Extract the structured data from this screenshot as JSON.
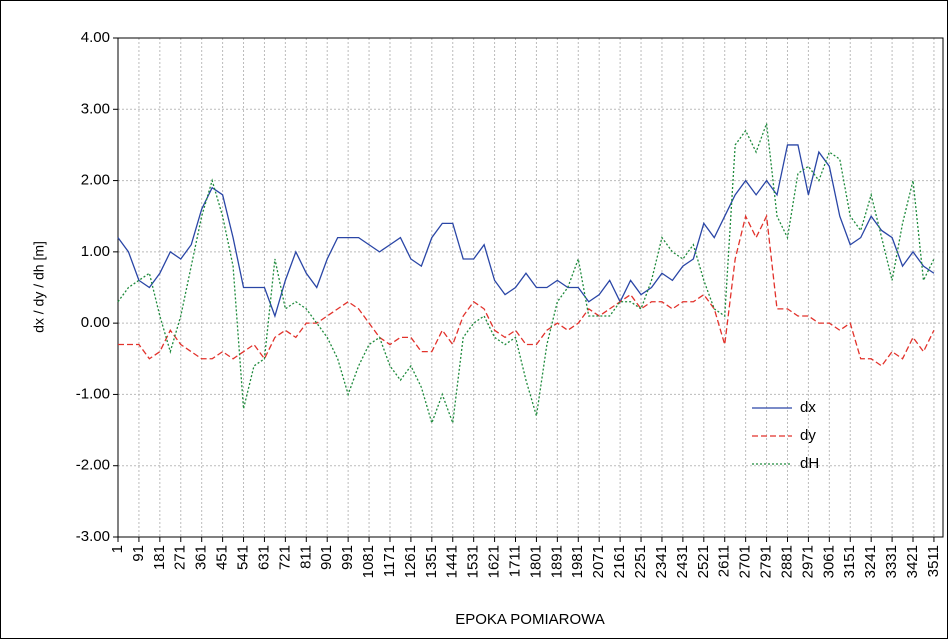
{
  "chart_data": {
    "type": "line",
    "x_label": "EPOKA POMIAROWA",
    "y_label": "dx / dy / dh [m]",
    "x": [
      1,
      46,
      91,
      136,
      181,
      226,
      271,
      316,
      361,
      406,
      451,
      496,
      541,
      586,
      631,
      676,
      721,
      766,
      811,
      856,
      901,
      946,
      991,
      1036,
      1081,
      1126,
      1171,
      1216,
      1261,
      1306,
      1351,
      1396,
      1441,
      1486,
      1531,
      1576,
      1621,
      1666,
      1711,
      1756,
      1801,
      1846,
      1891,
      1936,
      1981,
      2026,
      2071,
      2116,
      2161,
      2206,
      2251,
      2296,
      2341,
      2386,
      2431,
      2476,
      2521,
      2566,
      2611,
      2656,
      2701,
      2746,
      2791,
      2836,
      2881,
      2926,
      2971,
      3016,
      3061,
      3106,
      3151,
      3196,
      3241,
      3286,
      3331,
      3376,
      3421,
      3466,
      3511
    ],
    "series": [
      {
        "name": "dx",
        "color": "#2a46a6",
        "dash": "none",
        "values": [
          1.2,
          1.0,
          0.6,
          0.5,
          0.7,
          1.0,
          0.9,
          1.1,
          1.6,
          1.9,
          1.8,
          1.2,
          0.5,
          0.5,
          0.5,
          0.1,
          0.6,
          1.0,
          0.7,
          0.5,
          0.9,
          1.2,
          1.2,
          1.2,
          1.1,
          1.0,
          1.1,
          1.2,
          0.9,
          0.8,
          1.2,
          1.4,
          1.4,
          0.9,
          0.9,
          1.1,
          0.6,
          0.4,
          0.5,
          0.7,
          0.5,
          0.5,
          0.6,
          0.5,
          0.5,
          0.3,
          0.4,
          0.6,
          0.3,
          0.6,
          0.4,
          0.5,
          0.7,
          0.6,
          0.8,
          0.9,
          1.4,
          1.2,
          1.5,
          1.8,
          2.0,
          1.8,
          2.0,
          1.8,
          2.5,
          2.5,
          1.8,
          2.4,
          2.2,
          1.5,
          1.1,
          1.2,
          1.5,
          1.3,
          1.2,
          0.8,
          1.0,
          0.8,
          0.7
        ]
      },
      {
        "name": "dy",
        "color": "#e2322b",
        "dash": "6,3",
        "values": [
          -0.3,
          -0.3,
          -0.3,
          -0.5,
          -0.4,
          -0.1,
          -0.3,
          -0.4,
          -0.5,
          -0.5,
          -0.4,
          -0.5,
          -0.4,
          -0.3,
          -0.5,
          -0.2,
          -0.1,
          -0.2,
          0.0,
          0.0,
          0.1,
          0.2,
          0.3,
          0.2,
          0.0,
          -0.2,
          -0.3,
          -0.2,
          -0.2,
          -0.4,
          -0.4,
          -0.1,
          -0.3,
          0.1,
          0.3,
          0.2,
          -0.1,
          -0.2,
          -0.1,
          -0.3,
          -0.3,
          -0.1,
          0.0,
          -0.1,
          0.0,
          0.2,
          0.1,
          0.2,
          0.3,
          0.4,
          0.2,
          0.3,
          0.3,
          0.2,
          0.3,
          0.3,
          0.4,
          0.2,
          -0.3,
          0.9,
          1.5,
          1.2,
          1.5,
          0.2,
          0.2,
          0.1,
          0.1,
          0.0,
          0.0,
          -0.1,
          0.0,
          -0.5,
          -0.5,
          -0.6,
          -0.4,
          -0.5,
          -0.2,
          -0.4,
          -0.1
        ]
      },
      {
        "name": "dH",
        "color": "#1e8a3c",
        "dash": "2,2",
        "values": [
          0.3,
          0.5,
          0.6,
          0.7,
          0.1,
          -0.4,
          0.1,
          0.8,
          1.5,
          2.0,
          1.5,
          0.8,
          -1.2,
          -0.6,
          -0.5,
          0.9,
          0.2,
          0.3,
          0.2,
          0.0,
          -0.2,
          -0.5,
          -1.0,
          -0.6,
          -0.3,
          -0.2,
          -0.6,
          -0.8,
          -0.6,
          -0.9,
          -1.4,
          -1.0,
          -1.4,
          -0.2,
          0.0,
          0.1,
          -0.2,
          -0.3,
          -0.2,
          -0.8,
          -1.3,
          -0.3,
          0.3,
          0.5,
          0.9,
          0.1,
          0.1,
          0.1,
          0.3,
          0.3,
          0.2,
          0.6,
          1.2,
          1.0,
          0.9,
          1.1,
          0.6,
          0.2,
          0.1,
          2.5,
          2.7,
          2.4,
          2.8,
          1.5,
          1.2,
          2.1,
          2.2,
          2.0,
          2.4,
          2.3,
          1.5,
          1.3,
          1.8,
          1.2,
          0.6,
          1.4,
          2.0,
          0.6,
          0.9
        ]
      }
    ],
    "xlim": [
      1,
      3550
    ],
    "xticks": [
      1,
      91,
      181,
      271,
      361,
      451,
      541,
      631,
      721,
      811,
      901,
      991,
      1081,
      1171,
      1261,
      1351,
      1441,
      1531,
      1621,
      1711,
      1801,
      1891,
      1981,
      2071,
      2161,
      2251,
      2341,
      2431,
      2521,
      2611,
      2701,
      2791,
      2881,
      2971,
      3061,
      3151,
      3241,
      3331,
      3421,
      3511
    ],
    "ylim": [
      -3,
      4
    ],
    "yticks": [
      {
        "value": -3,
        "label": "-3.00"
      },
      {
        "value": -2,
        "label": "-2.00"
      },
      {
        "value": -1,
        "label": "-1.00"
      },
      {
        "value": 0,
        "label": "0.00"
      },
      {
        "value": 1,
        "label": "1.00"
      },
      {
        "value": 2,
        "label": "2.00"
      },
      {
        "value": 3,
        "label": "3.00"
      },
      {
        "value": 4,
        "label": "4.00"
      }
    ],
    "grid": true
  }
}
